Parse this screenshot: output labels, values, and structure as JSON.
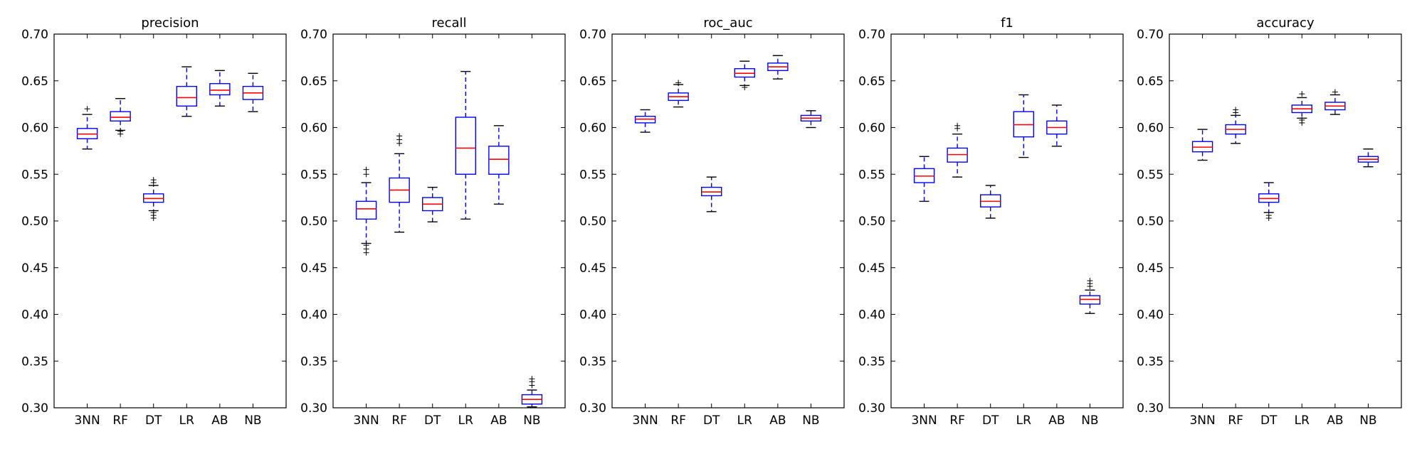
{
  "figure": {
    "panels": [
      "precision",
      "recall",
      "roc_auc",
      "f1",
      "accuracy"
    ]
  },
  "colors": {
    "box": "#0000ff",
    "median": "#ff0000",
    "whisker": "#0000ff",
    "flier": "#000000",
    "axes": "#000000"
  },
  "chart_data": [
    {
      "type": "box",
      "title": "precision",
      "ylim": [
        0.3,
        0.7
      ],
      "yticks": [
        "0.30",
        "0.35",
        "0.40",
        "0.45",
        "0.50",
        "0.55",
        "0.60",
        "0.65",
        "0.70"
      ],
      "categories": [
        "3NN",
        "RF",
        "DT",
        "LR",
        "AB",
        "NB"
      ],
      "boxes": [
        {
          "whislo": 0.577,
          "q1": 0.588,
          "med": 0.593,
          "q3": 0.599,
          "whishi": 0.614,
          "fliers": [
            0.62
          ]
        },
        {
          "whislo": 0.597,
          "q1": 0.607,
          "med": 0.611,
          "q3": 0.617,
          "whishi": 0.631,
          "fliers": [
            0.593,
            0.596
          ]
        },
        {
          "whislo": 0.511,
          "q1": 0.52,
          "med": 0.524,
          "q3": 0.529,
          "whishi": 0.538,
          "fliers": [
            0.503,
            0.506,
            0.509,
            0.541,
            0.544
          ]
        },
        {
          "whislo": 0.612,
          "q1": 0.623,
          "med": 0.632,
          "q3": 0.644,
          "whishi": 0.665,
          "fliers": []
        },
        {
          "whislo": 0.623,
          "q1": 0.635,
          "med": 0.64,
          "q3": 0.647,
          "whishi": 0.661,
          "fliers": []
        },
        {
          "whislo": 0.617,
          "q1": 0.63,
          "med": 0.637,
          "q3": 0.644,
          "whishi": 0.658,
          "fliers": []
        }
      ]
    },
    {
      "type": "box",
      "title": "recall",
      "ylim": [
        0.3,
        0.7
      ],
      "yticks": [
        "0.30",
        "0.35",
        "0.40",
        "0.45",
        "0.50",
        "0.55",
        "0.60",
        "0.65",
        "0.70"
      ],
      "categories": [
        "3NN",
        "RF",
        "DT",
        "LR",
        "AB",
        "NB"
      ],
      "boxes": [
        {
          "whislo": 0.476,
          "q1": 0.502,
          "med": 0.513,
          "q3": 0.521,
          "whishi": 0.541,
          "fliers": [
            0.466,
            0.47,
            0.474,
            0.55,
            0.555
          ]
        },
        {
          "whislo": 0.488,
          "q1": 0.52,
          "med": 0.533,
          "q3": 0.546,
          "whishi": 0.572,
          "fliers": [
            0.583,
            0.587,
            0.591
          ]
        },
        {
          "whislo": 0.499,
          "q1": 0.511,
          "med": 0.518,
          "q3": 0.525,
          "whishi": 0.536,
          "fliers": []
        },
        {
          "whislo": 0.502,
          "q1": 0.55,
          "med": 0.578,
          "q3": 0.611,
          "whishi": 0.66,
          "fliers": []
        },
        {
          "whislo": 0.518,
          "q1": 0.55,
          "med": 0.566,
          "q3": 0.58,
          "whishi": 0.602,
          "fliers": []
        },
        {
          "whislo": 0.301,
          "q1": 0.304,
          "med": 0.309,
          "q3": 0.314,
          "whishi": 0.319,
          "fliers": [
            0.324,
            0.328,
            0.331
          ]
        }
      ]
    },
    {
      "type": "box",
      "title": "roc_auc",
      "ylim": [
        0.3,
        0.7
      ],
      "yticks": [
        "0.30",
        "0.35",
        "0.40",
        "0.45",
        "0.50",
        "0.55",
        "0.60",
        "0.65",
        "0.70"
      ],
      "categories": [
        "3NN",
        "RF",
        "DT",
        "LR",
        "AB",
        "NB"
      ],
      "boxes": [
        {
          "whislo": 0.595,
          "q1": 0.605,
          "med": 0.609,
          "q3": 0.612,
          "whishi": 0.619,
          "fliers": []
        },
        {
          "whislo": 0.622,
          "q1": 0.629,
          "med": 0.633,
          "q3": 0.637,
          "whishi": 0.646,
          "fliers": [
            0.648
          ]
        },
        {
          "whislo": 0.51,
          "q1": 0.527,
          "med": 0.531,
          "q3": 0.536,
          "whishi": 0.547,
          "fliers": []
        },
        {
          "whislo": 0.645,
          "q1": 0.654,
          "med": 0.658,
          "q3": 0.663,
          "whishi": 0.671,
          "fliers": [
            0.643
          ]
        },
        {
          "whislo": 0.652,
          "q1": 0.661,
          "med": 0.665,
          "q3": 0.669,
          "whishi": 0.677,
          "fliers": []
        },
        {
          "whislo": 0.6,
          "q1": 0.607,
          "med": 0.61,
          "q3": 0.613,
          "whishi": 0.618,
          "fliers": []
        }
      ]
    },
    {
      "type": "box",
      "title": "f1",
      "ylim": [
        0.3,
        0.7
      ],
      "yticks": [
        "0.30",
        "0.35",
        "0.40",
        "0.45",
        "0.50",
        "0.55",
        "0.60",
        "0.65",
        "0.70"
      ],
      "categories": [
        "3NN",
        "RF",
        "DT",
        "LR",
        "AB",
        "NB"
      ],
      "boxes": [
        {
          "whislo": 0.521,
          "q1": 0.541,
          "med": 0.548,
          "q3": 0.556,
          "whishi": 0.569,
          "fliers": []
        },
        {
          "whislo": 0.547,
          "q1": 0.563,
          "med": 0.571,
          "q3": 0.578,
          "whishi": 0.593,
          "fliers": [
            0.599,
            0.602
          ]
        },
        {
          "whislo": 0.503,
          "q1": 0.515,
          "med": 0.521,
          "q3": 0.528,
          "whishi": 0.538,
          "fliers": []
        },
        {
          "whislo": 0.568,
          "q1": 0.59,
          "med": 0.603,
          "q3": 0.617,
          "whishi": 0.635,
          "fliers": []
        },
        {
          "whislo": 0.58,
          "q1": 0.593,
          "med": 0.6,
          "q3": 0.607,
          "whishi": 0.624,
          "fliers": []
        },
        {
          "whislo": 0.401,
          "q1": 0.411,
          "med": 0.416,
          "q3": 0.42,
          "whishi": 0.426,
          "fliers": [
            0.43,
            0.433,
            0.436
          ]
        }
      ]
    },
    {
      "type": "box",
      "title": "accuracy",
      "ylim": [
        0.3,
        0.7
      ],
      "yticks": [
        "0.30",
        "0.35",
        "0.40",
        "0.45",
        "0.50",
        "0.55",
        "0.60",
        "0.65",
        "0.70"
      ],
      "categories": [
        "3NN",
        "RF",
        "DT",
        "LR",
        "AB",
        "NB"
      ],
      "boxes": [
        {
          "whislo": 0.565,
          "q1": 0.574,
          "med": 0.579,
          "q3": 0.585,
          "whishi": 0.598,
          "fliers": []
        },
        {
          "whislo": 0.583,
          "q1": 0.593,
          "med": 0.598,
          "q3": 0.603,
          "whishi": 0.613,
          "fliers": [
            0.616,
            0.619
          ]
        },
        {
          "whislo": 0.509,
          "q1": 0.52,
          "med": 0.524,
          "q3": 0.529,
          "whishi": 0.541,
          "fliers": [
            0.503,
            0.506
          ]
        },
        {
          "whislo": 0.61,
          "q1": 0.616,
          "med": 0.62,
          "q3": 0.624,
          "whishi": 0.632,
          "fliers": [
            0.605,
            0.608,
            0.636
          ]
        },
        {
          "whislo": 0.614,
          "q1": 0.619,
          "med": 0.623,
          "q3": 0.627,
          "whishi": 0.635,
          "fliers": [
            0.638
          ]
        },
        {
          "whislo": 0.558,
          "q1": 0.563,
          "med": 0.566,
          "q3": 0.569,
          "whishi": 0.577,
          "fliers": []
        }
      ]
    }
  ]
}
